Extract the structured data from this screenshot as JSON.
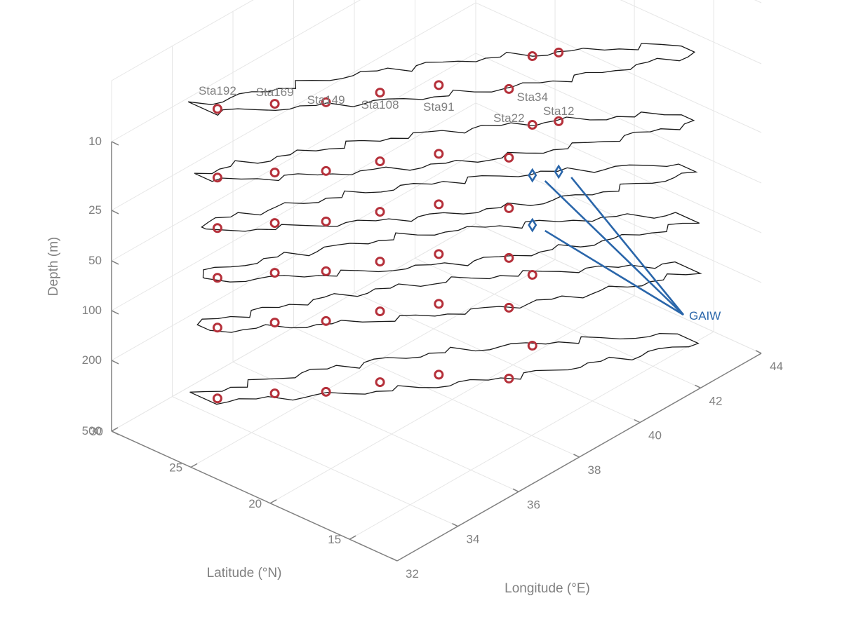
{
  "chart_data": {
    "type": "scatter3d",
    "title": "",
    "xlabel": "Longitude (°E)",
    "ylabel": "Latitude (°N)",
    "zlabel": "Depth (m)",
    "x_ticks": [
      "32",
      "34",
      "36",
      "38",
      "40",
      "42",
      "44"
    ],
    "y_ticks": [
      "15",
      "20",
      "25",
      "30"
    ],
    "depth_levels": [
      "10",
      "25",
      "50",
      "100",
      "200",
      "500"
    ],
    "xlim": [
      32,
      44
    ],
    "ylim": [
      12,
      30
    ],
    "grid": true,
    "stations": [
      {
        "label": "Sta192",
        "lon": 34.6,
        "lat": 28.3
      },
      {
        "label": "Sta169",
        "lon": 35.6,
        "lat": 26.6
      },
      {
        "label": "Sta149",
        "lon": 36.4,
        "lat": 24.9
      },
      {
        "label": "Sta108",
        "lon": 37.5,
        "lat": 23.6
      },
      {
        "label": "Sta91",
        "lon": 38.6,
        "lat": 22.0
      },
      {
        "label": "Sta22",
        "lon": 39.5,
        "lat": 19.3
      },
      {
        "label": "Sta34",
        "lon": 40.9,
        "lat": 20.5
      },
      {
        "label": "Sta12",
        "lon": 41.4,
        "lat": 19.8
      }
    ],
    "series": [
      {
        "name": "",
        "marker": "circle",
        "color": "#b5303a",
        "points": [
          {
            "station": "Sta192",
            "depth": "10"
          },
          {
            "station": "Sta169",
            "depth": "10"
          },
          {
            "station": "Sta149",
            "depth": "10"
          },
          {
            "station": "Sta108",
            "depth": "10"
          },
          {
            "station": "Sta91",
            "depth": "10"
          },
          {
            "station": "Sta22",
            "depth": "10"
          },
          {
            "station": "Sta34",
            "depth": "10"
          },
          {
            "station": "Sta12",
            "depth": "10"
          },
          {
            "station": "Sta192",
            "depth": "25"
          },
          {
            "station": "Sta169",
            "depth": "25"
          },
          {
            "station": "Sta149",
            "depth": "25"
          },
          {
            "station": "Sta108",
            "depth": "25"
          },
          {
            "station": "Sta91",
            "depth": "25"
          },
          {
            "station": "Sta22",
            "depth": "25"
          },
          {
            "station": "Sta34",
            "depth": "25"
          },
          {
            "station": "Sta12",
            "depth": "25"
          },
          {
            "station": "Sta192",
            "depth": "50"
          },
          {
            "station": "Sta169",
            "depth": "50"
          },
          {
            "station": "Sta149",
            "depth": "50"
          },
          {
            "station": "Sta108",
            "depth": "50"
          },
          {
            "station": "Sta91",
            "depth": "50"
          },
          {
            "station": "Sta22",
            "depth": "50"
          },
          {
            "station": "Sta192",
            "depth": "100"
          },
          {
            "station": "Sta169",
            "depth": "100"
          },
          {
            "station": "Sta149",
            "depth": "100"
          },
          {
            "station": "Sta108",
            "depth": "100"
          },
          {
            "station": "Sta91",
            "depth": "100"
          },
          {
            "station": "Sta22",
            "depth": "100"
          },
          {
            "station": "Sta192",
            "depth": "200"
          },
          {
            "station": "Sta169",
            "depth": "200"
          },
          {
            "station": "Sta149",
            "depth": "200"
          },
          {
            "station": "Sta108",
            "depth": "200"
          },
          {
            "station": "Sta91",
            "depth": "200"
          },
          {
            "station": "Sta22",
            "depth": "200"
          },
          {
            "station": "Sta34",
            "depth": "200"
          },
          {
            "station": "Sta34",
            "depth": "500"
          },
          {
            "station": "Sta192",
            "depth": "500"
          },
          {
            "station": "Sta169",
            "depth": "500"
          },
          {
            "station": "Sta149",
            "depth": "500"
          },
          {
            "station": "Sta108",
            "depth": "500"
          },
          {
            "station": "Sta91",
            "depth": "500"
          },
          {
            "station": "Sta22",
            "depth": "500"
          }
        ]
      },
      {
        "name": "GAIW",
        "marker": "diamond",
        "color": "#2a66aa",
        "points": [
          {
            "station": "Sta34",
            "depth": "50"
          },
          {
            "station": "Sta12",
            "depth": "50"
          },
          {
            "station": "Sta34",
            "depth": "100"
          }
        ]
      }
    ],
    "annotations": [
      {
        "text": "GAIW",
        "points_to": [
          "Sta34 at 50 m",
          "Sta12 at 50 m",
          "Sta34 at 100 m"
        ]
      }
    ],
    "colors": {
      "axis": "#808080",
      "grid": "#e6e6e6",
      "coast": "#1a1a1a",
      "station": "#b5303a",
      "gaiw": "#2a66aa",
      "arrow": "#808080"
    }
  }
}
